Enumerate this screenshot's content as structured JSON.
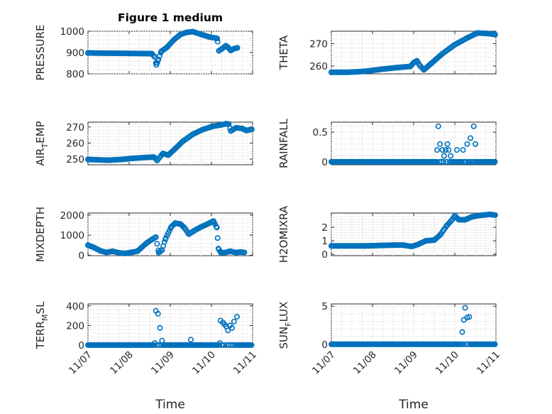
{
  "figure": {
    "title": "Figure 1 medium",
    "marker_color": "#0072BD",
    "xlabel": "Time"
  },
  "chart_data": [
    {
      "type": "scatter",
      "id": "pressure",
      "title": "Figure 1 medium",
      "ylabel": "PRESSURE",
      "xlabel": "",
      "x_range": [
        0,
        4
      ],
      "ylim": [
        800,
        1000
      ],
      "yticks": [
        800,
        900,
        1000
      ],
      "ytick_labels": [
        "800",
        "900",
        "1000"
      ],
      "xticks": [
        0,
        1,
        2,
        3,
        4
      ],
      "xtick_labels": [],
      "key_points": [
        [
          0,
          898
        ],
        [
          1.0,
          896
        ],
        [
          1.55,
          895
        ],
        [
          1.62,
          880
        ],
        [
          1.66,
          842
        ],
        [
          1.7,
          862
        ],
        [
          1.78,
          905
        ],
        [
          1.92,
          925
        ],
        [
          2.1,
          962
        ],
        [
          2.25,
          985
        ],
        [
          2.4,
          995
        ],
        [
          2.55,
          998
        ],
        [
          2.75,
          985
        ],
        [
          2.95,
          973
        ],
        [
          3.1,
          968
        ],
        [
          3.14,
          966
        ],
        [
          3.18,
          908
        ],
        [
          3.26,
          918
        ],
        [
          3.35,
          932
        ],
        [
          3.4,
          925
        ],
        [
          3.47,
          910
        ],
        [
          3.55,
          918
        ],
        [
          3.63,
          922
        ]
      ]
    },
    {
      "type": "scatter",
      "id": "theta",
      "title": "",
      "ylabel": "THETA",
      "xlabel": "",
      "x_range": [
        0,
        4
      ],
      "ylim": [
        256.5,
        275.5
      ],
      "yticks": [
        260,
        270
      ],
      "ytick_labels": [
        "260",
        "270"
      ],
      "xticks": [
        0,
        1,
        2,
        3,
        4
      ],
      "xtick_labels": [],
      "key_points": [
        [
          0,
          257.2
        ],
        [
          0.4,
          257.2
        ],
        [
          0.8,
          257.6
        ],
        [
          1.2,
          258.5
        ],
        [
          1.6,
          259.3
        ],
        [
          1.92,
          259.8
        ],
        [
          2.0,
          261.5
        ],
        [
          2.08,
          262.3
        ],
        [
          2.15,
          260.2
        ],
        [
          2.25,
          258.3
        ],
        [
          2.45,
          261.5
        ],
        [
          2.7,
          265.5
        ],
        [
          3.0,
          269.5
        ],
        [
          3.3,
          272.5
        ],
        [
          3.55,
          274.7
        ],
        [
          3.8,
          274.5
        ],
        [
          3.98,
          274.0
        ]
      ]
    },
    {
      "type": "scatter",
      "id": "airtemp",
      "title": "",
      "ylabel": "AIR_TEMP",
      "ylabel_parts": [
        "AIR",
        "T",
        "EMP"
      ],
      "xlabel": "",
      "x_range": [
        0,
        4
      ],
      "ylim": [
        246.5,
        273
      ],
      "yticks": [
        250,
        260,
        270
      ],
      "ytick_labels": [
        "250",
        "260",
        "270"
      ],
      "xticks": [
        0,
        1,
        2,
        3,
        4
      ],
      "xtick_labels": [],
      "key_points": [
        [
          0,
          249.8
        ],
        [
          0.5,
          249.3
        ],
        [
          0.8,
          249.8
        ],
        [
          1.1,
          250.5
        ],
        [
          1.4,
          251.0
        ],
        [
          1.6,
          251.3
        ],
        [
          1.68,
          249.2
        ],
        [
          1.82,
          253.5
        ],
        [
          1.95,
          252.5
        ],
        [
          2.1,
          256.0
        ],
        [
          2.3,
          261.0
        ],
        [
          2.55,
          265.5
        ],
        [
          2.8,
          268.5
        ],
        [
          3.05,
          270.5
        ],
        [
          3.22,
          271.2
        ],
        [
          3.36,
          272.0
        ],
        [
          3.42,
          271.8
        ],
        [
          3.47,
          267.5
        ],
        [
          3.6,
          269.5
        ],
        [
          3.75,
          269.0
        ],
        [
          3.85,
          267.8
        ],
        [
          3.98,
          268.5
        ]
      ]
    },
    {
      "type": "scatter",
      "id": "rainfall",
      "title": "",
      "ylabel": "RAINFALL",
      "xlabel": "",
      "x_range": [
        0,
        4
      ],
      "ylim": [
        -0.05,
        0.67
      ],
      "yticks": [
        0,
        0.5
      ],
      "ytick_labels": [
        "0",
        "0.5"
      ],
      "xticks": [
        0,
        1,
        2,
        3,
        4
      ],
      "xtick_labels": [],
      "baseline": 0,
      "spikes": [
        [
          2.57,
          0.2
        ],
        [
          2.6,
          0.6
        ],
        [
          2.64,
          0.3
        ],
        [
          2.7,
          0.2
        ],
        [
          2.74,
          0.1
        ],
        [
          2.78,
          0.2
        ],
        [
          2.82,
          0.3
        ],
        [
          2.85,
          0.2
        ],
        [
          2.9,
          0.1
        ],
        [
          3.05,
          0.2
        ],
        [
          3.2,
          0.2
        ],
        [
          3.3,
          0.3
        ],
        [
          3.38,
          0.4
        ],
        [
          3.46,
          0.6
        ],
        [
          3.5,
          0.3
        ]
      ]
    },
    {
      "type": "scatter",
      "id": "mixdepth",
      "title": "",
      "ylabel": "MIXDEPTH",
      "xlabel": "",
      "x_range": [
        0,
        4
      ],
      "ylim": [
        -20,
        2100
      ],
      "yticks": [
        0,
        1000,
        2000
      ],
      "ytick_labels": [
        "0",
        "1000",
        "2000"
      ],
      "xticks": [
        0,
        1,
        2,
        3,
        4
      ],
      "xtick_labels": [],
      "key_points": [
        [
          0,
          500
        ],
        [
          0.15,
          380
        ],
        [
          0.3,
          220
        ],
        [
          0.45,
          140
        ],
        [
          0.6,
          200
        ],
        [
          0.75,
          120
        ],
        [
          0.9,
          90
        ],
        [
          1.05,
          140
        ],
        [
          1.2,
          200
        ],
        [
          1.3,
          380
        ],
        [
          1.42,
          600
        ],
        [
          1.55,
          780
        ],
        [
          1.65,
          900
        ],
        [
          1.72,
          130
        ],
        [
          1.8,
          260
        ],
        [
          1.88,
          800
        ],
        [
          2.02,
          1400
        ],
        [
          2.12,
          1600
        ],
        [
          2.25,
          1550
        ],
        [
          2.35,
          1350
        ],
        [
          2.45,
          1050
        ],
        [
          2.58,
          1220
        ],
        [
          2.72,
          1380
        ],
        [
          2.85,
          1500
        ],
        [
          2.95,
          1600
        ],
        [
          3.05,
          1700
        ],
        [
          3.13,
          1380
        ],
        [
          3.17,
          330
        ],
        [
          3.23,
          120
        ],
        [
          3.35,
          140
        ],
        [
          3.45,
          200
        ],
        [
          3.6,
          130
        ],
        [
          3.7,
          160
        ],
        [
          3.8,
          140
        ]
      ]
    },
    {
      "type": "scatter",
      "id": "h2omixra",
      "title": "",
      "ylabel": "H2OMIXRA",
      "xlabel": "",
      "x_range": [
        0,
        4
      ],
      "ylim": [
        -0.1,
        3.05
      ],
      "yticks": [
        0,
        1,
        2
      ],
      "ytick_labels": [
        "0",
        "1",
        "2"
      ],
      "xticks": [
        0,
        1,
        2,
        3,
        4
      ],
      "xtick_labels": [],
      "key_points": [
        [
          0,
          0.62
        ],
        [
          0.8,
          0.62
        ],
        [
          1.5,
          0.68
        ],
        [
          1.75,
          0.68
        ],
        [
          1.95,
          0.58
        ],
        [
          2.1,
          0.72
        ],
        [
          2.3,
          1.0
        ],
        [
          2.5,
          1.05
        ],
        [
          2.65,
          1.45
        ],
        [
          2.8,
          2.1
        ],
        [
          2.92,
          2.5
        ],
        [
          3.0,
          2.85
        ],
        [
          3.1,
          2.55
        ],
        [
          3.25,
          2.55
        ],
        [
          3.4,
          2.75
        ],
        [
          3.55,
          2.85
        ],
        [
          3.7,
          2.9
        ],
        [
          3.85,
          2.95
        ],
        [
          3.98,
          2.9
        ]
      ]
    },
    {
      "type": "scatter",
      "id": "terrmsl",
      "title": "",
      "ylabel": "TERR_MSL",
      "ylabel_parts": [
        "TERR",
        "M",
        "SL"
      ],
      "xlabel": "",
      "x_range": [
        0,
        4
      ],
      "ylim": [
        -15,
        420
      ],
      "yticks": [
        0,
        200,
        400
      ],
      "ytick_labels": [
        "0",
        "200",
        "400"
      ],
      "xticks": [
        0,
        1,
        2,
        3,
        4
      ],
      "xtick_labels": [],
      "baseline": 0,
      "spikes": [
        [
          1.62,
          20
        ],
        [
          1.65,
          350
        ],
        [
          1.7,
          320
        ],
        [
          1.75,
          175
        ],
        [
          1.8,
          45
        ],
        [
          2.5,
          55
        ],
        [
          3.2,
          20
        ],
        [
          3.22,
          250
        ],
        [
          3.28,
          230
        ],
        [
          3.32,
          210
        ],
        [
          3.36,
          190
        ],
        [
          3.4,
          150
        ],
        [
          3.45,
          200
        ],
        [
          3.5,
          175
        ],
        [
          3.55,
          240
        ],
        [
          3.62,
          290
        ]
      ]
    },
    {
      "type": "scatter",
      "id": "sunflux",
      "title": "",
      "ylabel": "SUN_FLUX",
      "ylabel_parts": [
        "SUN",
        "F",
        "LUX"
      ],
      "xlabel": "Time",
      "x_range": [
        0,
        4
      ],
      "ylim": [
        -0.3,
        5.3
      ],
      "yticks": [
        0,
        5
      ],
      "ytick_labels": [
        "0",
        "5"
      ],
      "xticks": [
        0,
        1,
        2,
        3,
        4
      ],
      "xtick_labels": [
        "11/07",
        "11/08",
        "11/09",
        "11/10",
        "11/11"
      ],
      "baseline": 0,
      "spikes": [
        [
          3.18,
          1.6
        ],
        [
          3.22,
          3.2
        ],
        [
          3.25,
          4.8
        ],
        [
          3.3,
          3.5
        ],
        [
          3.35,
          3.6
        ]
      ]
    }
  ],
  "bottom_left_xtick_labels": [
    "11/07",
    "11/08",
    "11/09",
    "11/10",
    "11/11"
  ]
}
